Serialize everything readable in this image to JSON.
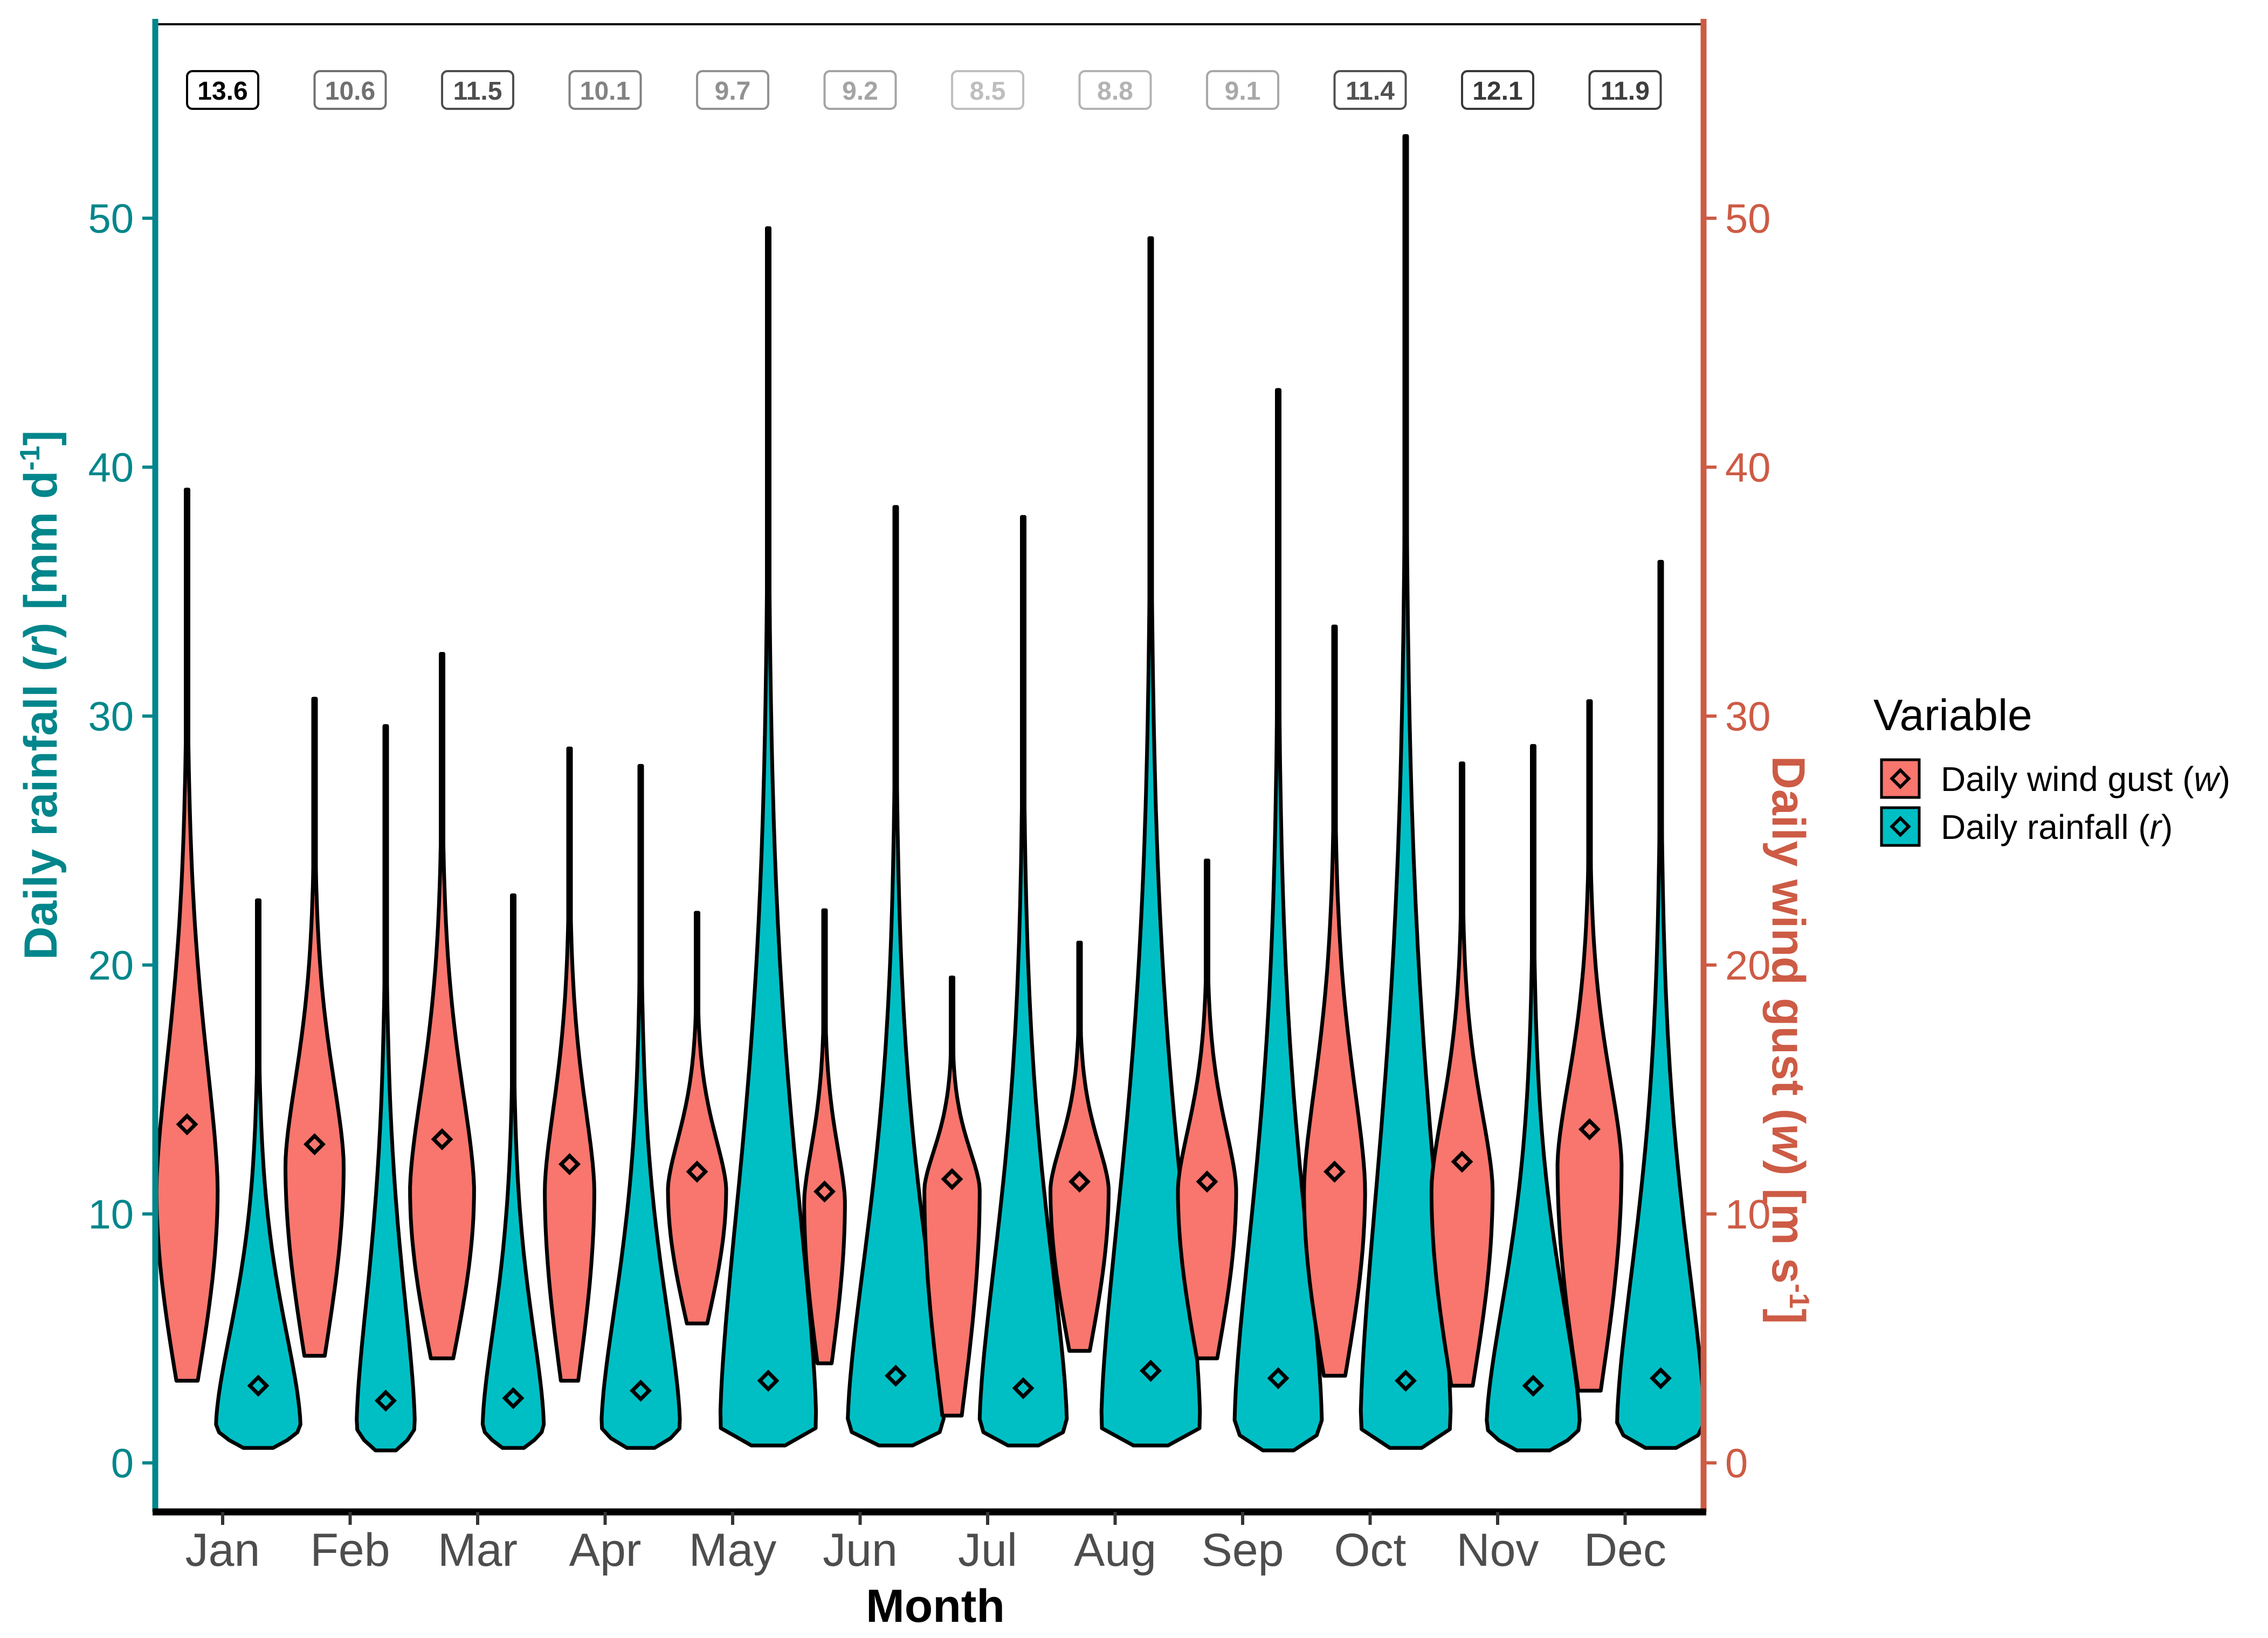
{
  "chart_data": {
    "type": "violin",
    "xlabel": "Month",
    "ylabel_left": {
      "prefix": "Daily rainfall (",
      "symbol": "r",
      "suffix": ") [mm d",
      "sup": "-1",
      "close": "]"
    },
    "ylabel_right": {
      "prefix": "Daily wind gust (",
      "symbol": "w",
      "suffix": ") [m s",
      "sup": "-1",
      "close": "]"
    },
    "categories": [
      "Jan",
      "Feb",
      "Mar",
      "Apr",
      "May",
      "Jun",
      "Jul",
      "Aug",
      "Sep",
      "Oct",
      "Nov",
      "Dec"
    ],
    "y_left": {
      "min": -2,
      "max": 58,
      "ticks": [
        0,
        10,
        20,
        30,
        40,
        50
      ],
      "tick_labels": [
        "0",
        "10",
        "20",
        "30",
        "40",
        "50"
      ]
    },
    "y_right": {
      "min": -2,
      "max": 58,
      "ticks": [
        0,
        10,
        20,
        30,
        40,
        50
      ],
      "tick_labels": [
        "0",
        "10",
        "20",
        "30",
        "40",
        "50"
      ]
    },
    "annotations": {
      "values": [
        13.6,
        10.6,
        11.5,
        10.1,
        9.7,
        9.2,
        8.5,
        8.8,
        9.1,
        11.4,
        12.1,
        11.9
      ],
      "labels": [
        "13.6",
        "10.6",
        "11.5",
        "10.1",
        "9.7",
        "9.2",
        "8.5",
        "8.8",
        "9.1",
        "11.4",
        "12.1",
        "11.9"
      ]
    },
    "series": [
      {
        "name": "Daily wind gust (w)",
        "legend_prefix": "Daily wind gust (",
        "legend_symbol": "w",
        "legend_suffix": ")",
        "color": "#F8766D",
        "axis": "right",
        "min": [
          3.3,
          4.3,
          4.2,
          3.3,
          5.6,
          4.0,
          1.9,
          4.5,
          4.2,
          3.5,
          3.1,
          2.9
        ],
        "max": [
          39.1,
          30.7,
          32.5,
          28.7,
          22.1,
          22.2,
          19.5,
          20.9,
          24.2,
          33.6,
          28.1,
          30.6
        ],
        "median": [
          13.6,
          12.8,
          13.0,
          12.0,
          11.7,
          10.9,
          11.4,
          11.3,
          11.3,
          11.7,
          12.1,
          13.4
        ],
        "peak_at": [
          11,
          12,
          11,
          11,
          11,
          10.5,
          11,
          11,
          11,
          11,
          11,
          12
        ],
        "max_halfwidth": [
          0.21,
          0.2,
          0.22,
          0.17,
          0.2,
          0.14,
          0.19,
          0.2,
          0.2,
          0.21,
          0.21,
          0.22
        ]
      },
      {
        "name": "Daily rainfall (r)",
        "legend_prefix": "Daily rainfall (",
        "legend_symbol": "r",
        "legend_suffix": ")",
        "color": "#00BFC4",
        "axis": "left",
        "min": [
          0.6,
          0.5,
          0.6,
          0.6,
          0.7,
          0.7,
          0.7,
          0.7,
          0.5,
          0.6,
          0.5,
          0.6
        ],
        "max": [
          22.6,
          29.6,
          22.8,
          28.0,
          49.6,
          38.4,
          38.0,
          49.2,
          43.1,
          53.3,
          28.8,
          36.2
        ],
        "median": [
          3.1,
          2.5,
          2.6,
          2.9,
          3.3,
          3.5,
          3.0,
          3.7,
          3.4,
          3.3,
          3.1,
          3.4
        ],
        "peak_at": [
          1.5,
          1.5,
          1.5,
          1.5,
          1.5,
          1.5,
          1.5,
          1.5,
          1.5,
          1.5,
          1.5,
          1.5
        ],
        "max_halfwidth": [
          0.29,
          0.2,
          0.21,
          0.27,
          0.33,
          0.33,
          0.3,
          0.34,
          0.3,
          0.31,
          0.32,
          0.3
        ]
      }
    ],
    "left_axis_color": "#00868B",
    "right_axis_color": "#CD5B45",
    "legend": {
      "title": "Variable",
      "position": "right"
    }
  }
}
